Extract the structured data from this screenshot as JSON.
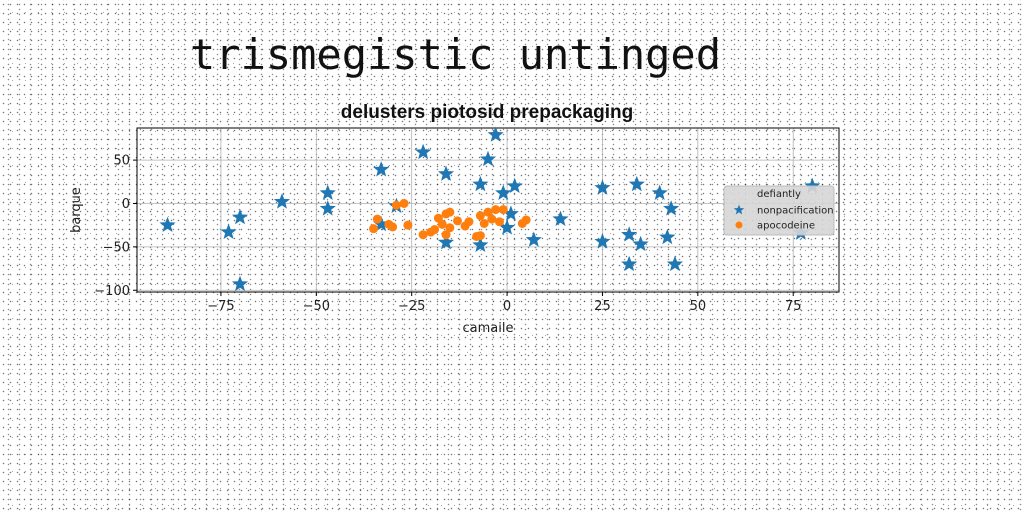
{
  "page": {
    "title": "trismegistic untinged"
  },
  "chart_data": {
    "type": "scatter",
    "title": "delusters piotosid prepackaging",
    "xlabel": "camaile",
    "ylabel": "barque",
    "xlim": [
      -97,
      87
    ],
    "ylim": [
      -102,
      87
    ],
    "xticks": [
      -75,
      -50,
      -25,
      0,
      25,
      50,
      75
    ],
    "yticks": [
      -100,
      -50,
      0,
      50
    ],
    "grid": true,
    "legend": {
      "title": "defiantly",
      "placement": "right"
    },
    "series": [
      {
        "name": "nonpacification",
        "marker": "star",
        "color": "#1f77b4",
        "points": [
          [
            -89,
            -25
          ],
          [
            -73,
            -33
          ],
          [
            -70,
            -16
          ],
          [
            -70,
            -93
          ],
          [
            -59,
            2
          ],
          [
            -47,
            12
          ],
          [
            -47,
            -6
          ],
          [
            -33,
            39
          ],
          [
            -33,
            -24
          ],
          [
            -29,
            -3
          ],
          [
            -22,
            59
          ],
          [
            -16,
            34
          ],
          [
            -16,
            -45
          ],
          [
            -7,
            22
          ],
          [
            -7,
            -48
          ],
          [
            -5,
            51
          ],
          [
            -3,
            79
          ],
          [
            -1,
            12
          ],
          [
            0,
            -28
          ],
          [
            1,
            -12
          ],
          [
            2,
            20
          ],
          [
            7,
            -42
          ],
          [
            14,
            -18
          ],
          [
            25,
            18
          ],
          [
            25,
            -44
          ],
          [
            32,
            -36
          ],
          [
            32,
            -70
          ],
          [
            34,
            22
          ],
          [
            35,
            -47
          ],
          [
            40,
            12
          ],
          [
            42,
            -39
          ],
          [
            43,
            -6
          ],
          [
            44,
            -70
          ],
          [
            77,
            -34
          ],
          [
            80,
            20
          ]
        ]
      },
      {
        "name": "apocodeine",
        "marker": "circle",
        "color": "#ff7f0e",
        "points": [
          [
            -35,
            -29
          ],
          [
            -34,
            -18
          ],
          [
            -31,
            -24
          ],
          [
            -30,
            -27
          ],
          [
            -29,
            -2
          ],
          [
            -27,
            0
          ],
          [
            -26,
            -25
          ],
          [
            -20,
            -33
          ],
          [
            -19,
            -30
          ],
          [
            -18,
            -17
          ],
          [
            -17,
            -24
          ],
          [
            -16,
            -12
          ],
          [
            -16,
            -36
          ],
          [
            -15,
            -28
          ],
          [
            -15,
            -10
          ],
          [
            -11,
            -26
          ],
          [
            -10,
            -21
          ],
          [
            -8,
            -38
          ],
          [
            -7,
            -37
          ],
          [
            -7,
            -14
          ],
          [
            -6,
            -23
          ],
          [
            -5,
            -10
          ],
          [
            -4,
            -18
          ],
          [
            -3,
            -7
          ],
          [
            4,
            -23
          ],
          [
            5,
            -19
          ],
          [
            -1,
            -7
          ],
          [
            -13,
            -20
          ],
          [
            -22,
            -36
          ],
          [
            -2,
            -21
          ]
        ]
      }
    ]
  }
}
